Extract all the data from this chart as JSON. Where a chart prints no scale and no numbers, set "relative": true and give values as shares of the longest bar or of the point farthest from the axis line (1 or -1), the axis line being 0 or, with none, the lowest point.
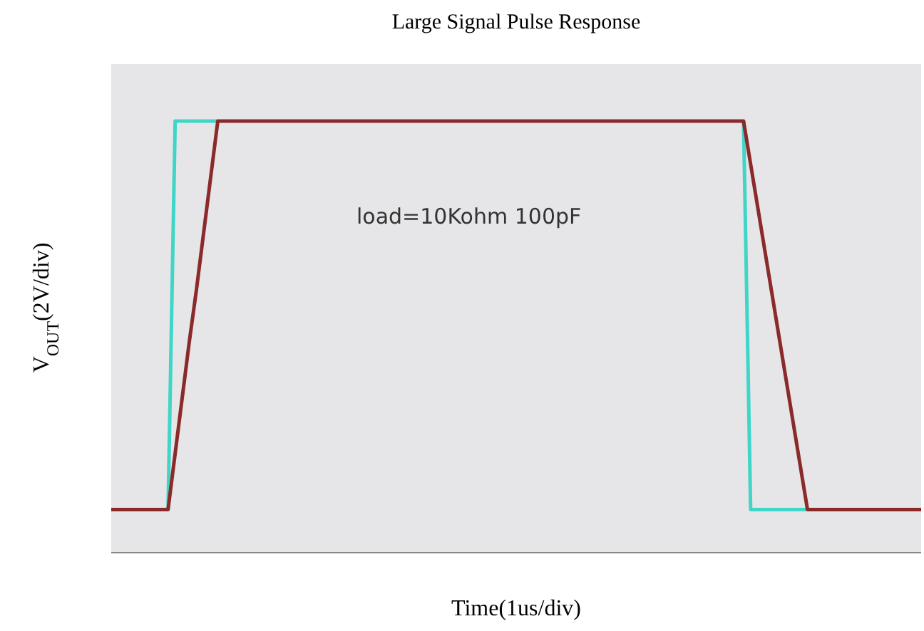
{
  "chart_data": {
    "type": "line",
    "title": "Large Signal Pulse Response",
    "xlabel": "Time(1us/div)",
    "ylabel": "V$_{OUT}$(2V/div)",
    "relative": true,
    "annotations": [
      "load=10Kohm 100pF"
    ],
    "categories": [
      null,
      null,
      null,
      null,
      null,
      null,
      null,
      null,
      null,
      null,
      null,
      null,
      null,
      null,
      null,
      null,
      null,
      null,
      null,
      null,
      null,
      null,
      null,
      null,
      null,
      null,
      null,
      null,
      null,
      null,
      null,
      null,
      null,
      null,
      null,
      null,
      null,
      null,
      null,
      null,
      null,
      null,
      null,
      null,
      null,
      null,
      null,
      null,
      null,
      null,
      null,
      null,
      null,
      null,
      null,
      null,
      null,
      null,
      null,
      null,
      null,
      null,
      null,
      null,
      null,
      null,
      null,
      null,
      null,
      null,
      null,
      null,
      null,
      null,
      null,
      null,
      null,
      null,
      null,
      null,
      null,
      null,
      null,
      null,
      null,
      null,
      null,
      null,
      null,
      null,
      null,
      null,
      null,
      null,
      null,
      null,
      null,
      null,
      null,
      null,
      null,
      null,
      null,
      null,
      null,
      null,
      null,
      null,
      null,
      null,
      null,
      null,
      null,
      null,
      null
    ],
    "series": [
      {
        "color": "#3fd6c8",
        "values": [
          null,
          null,
          null,
          null,
          null,
          null,
          null,
          null,
          0.1,
          1,
          1,
          1,
          1,
          1,
          1,
          1,
          null,
          null,
          null,
          null,
          null,
          null,
          null,
          null,
          null,
          null,
          null,
          null,
          null,
          null,
          null,
          null,
          null,
          null,
          null,
          null,
          null,
          null,
          null,
          null,
          null,
          null,
          null,
          null,
          null,
          null,
          null,
          null,
          null,
          null,
          null,
          null,
          null,
          null,
          null,
          null,
          null,
          null,
          null,
          null,
          null,
          null,
          null,
          null,
          null,
          null,
          null,
          null,
          null,
          null,
          null,
          null,
          null,
          null,
          null,
          null,
          null,
          null,
          null,
          null,
          null,
          null,
          null,
          null,
          null,
          null,
          null,
          null,
          null,
          1,
          0.1,
          0.1,
          0.1,
          0.1,
          0.1,
          0.1,
          0.1,
          0.1,
          0.1,
          null,
          null,
          null,
          null,
          null,
          null,
          null,
          null,
          null,
          null,
          null,
          null,
          null,
          null,
          null,
          null
        ]
      },
      {
        "color": "#8b2a2a",
        "values": [
          0.1,
          0.1,
          0.1,
          0.1,
          0.1,
          0.1,
          0.1,
          0.1,
          0.1,
          0.23,
          0.36,
          0.49,
          0.61,
          0.74,
          0.87,
          1,
          1,
          1,
          1,
          1,
          1,
          1,
          1,
          1,
          1,
          1,
          1,
          1,
          1,
          1,
          1,
          1,
          1,
          1,
          1,
          1,
          1,
          1,
          1,
          1,
          1,
          1,
          1,
          1,
          1,
          1,
          1,
          1,
          1,
          1,
          1,
          1,
          1,
          1,
          1,
          1,
          1,
          1,
          1,
          1,
          1,
          1,
          1,
          1,
          1,
          1,
          1,
          1,
          1,
          1,
          1,
          1,
          1,
          1,
          1,
          1,
          1,
          1,
          1,
          1,
          1,
          1,
          1,
          1,
          1,
          1,
          1,
          1,
          1,
          1,
          0.9,
          0.8,
          0.7,
          0.6,
          0.5,
          0.4,
          0.3,
          0.2,
          0.1,
          0.1,
          0.1,
          0.1,
          0.1,
          0.1,
          0.1,
          0.1,
          0.1,
          0.1,
          0.1,
          0.1,
          0.1,
          0.1,
          0.1,
          0.1,
          0.1
        ]
      }
    ]
  }
}
